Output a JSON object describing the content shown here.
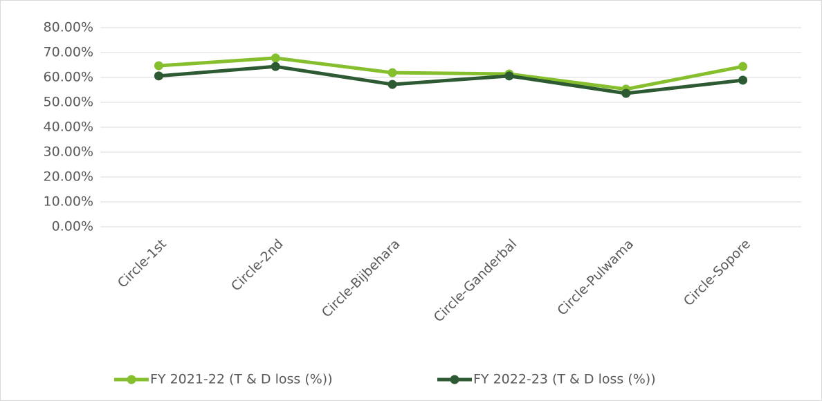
{
  "chart_data": {
    "type": "line",
    "categories": [
      "Circle-1st",
      "Circle-2nd",
      "Circle-Bijbehara",
      "Circle-Ganderbal",
      "Circle-Pulwama",
      "Circle-Sopore"
    ],
    "series": [
      {
        "name": "FY 2021-22 (T & D loss (%))",
        "color": "#86bf2e",
        "values": [
          64.7,
          67.8,
          61.9,
          61.4,
          55.3,
          64.4
        ]
      },
      {
        "name": "FY 2022-23 (T & D loss (%))",
        "color": "#2d5a32",
        "values": [
          60.6,
          64.4,
          57.2,
          60.6,
          53.6,
          58.9
        ]
      }
    ],
    "ylim": [
      0,
      80
    ],
    "yticks": [
      {
        "value": 0,
        "label": "0.00%"
      },
      {
        "value": 10,
        "label": "10.00%"
      },
      {
        "value": 20,
        "label": "20.00%"
      },
      {
        "value": 30,
        "label": "30.00%"
      },
      {
        "value": 40,
        "label": "40.00%"
      },
      {
        "value": 50,
        "label": "50.00%"
      },
      {
        "value": 60,
        "label": "60.00%"
      },
      {
        "value": 70,
        "label": "70.00%"
      },
      {
        "value": 80,
        "label": "80.00%"
      }
    ],
    "grid": true,
    "legend": "bottom"
  }
}
